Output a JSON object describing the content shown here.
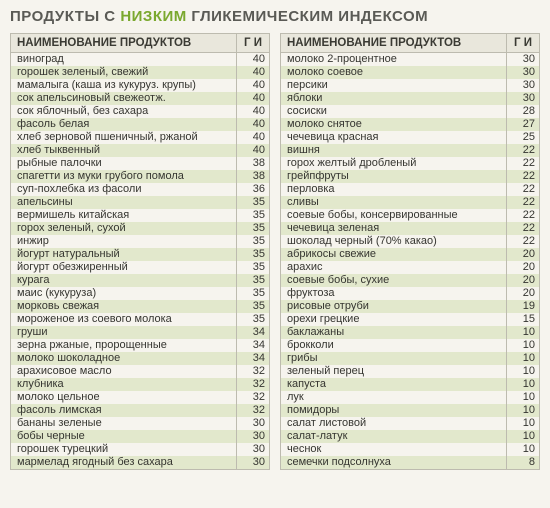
{
  "title_parts": {
    "pre": "ПРОДУКТЫ С ",
    "low": "НИЗКИМ",
    "post": " ГЛИКЕМИЧЕСКИМ ИНДЕКСОМ"
  },
  "headers": {
    "name": "НАИМЕНОВАНИЕ ПРОДУКТОВ",
    "gi": "Г И"
  },
  "left": [
    {
      "name": "виноград",
      "gi": 40
    },
    {
      "name": "горошек зеленый, свежий",
      "gi": 40
    },
    {
      "name": "мамалыга (каша из кукуруз. крупы)",
      "gi": 40
    },
    {
      "name": "сок апельсиновый свежеотж.",
      "gi": 40
    },
    {
      "name": "сок яблочный, без сахара",
      "gi": 40
    },
    {
      "name": "фасоль белая",
      "gi": 40
    },
    {
      "name": "хлеб зерновой пшеничный, ржаной",
      "gi": 40
    },
    {
      "name": "хлеб тыквенный",
      "gi": 40
    },
    {
      "name": "рыбные палочки",
      "gi": 38
    },
    {
      "name": "спагетти из муки грубого помола",
      "gi": 38
    },
    {
      "name": "суп-похлебка из фасоли",
      "gi": 36
    },
    {
      "name": "апельсины",
      "gi": 35
    },
    {
      "name": "вермишель китайская",
      "gi": 35
    },
    {
      "name": "горох зеленый, сухой",
      "gi": 35
    },
    {
      "name": "инжир",
      "gi": 35
    },
    {
      "name": "йогурт натуральный",
      "gi": 35
    },
    {
      "name": "йогурт обезжиренный",
      "gi": 35
    },
    {
      "name": "курага",
      "gi": 35
    },
    {
      "name": "маис (кукуруза)",
      "gi": 35
    },
    {
      "name": "морковь свежая",
      "gi": 35
    },
    {
      "name": "мороженое из соевого молока",
      "gi": 35
    },
    {
      "name": "груши",
      "gi": 34
    },
    {
      "name": "зерна ржаные, пророщенные",
      "gi": 34
    },
    {
      "name": "молоко шоколадное",
      "gi": 34
    },
    {
      "name": "арахисовое масло",
      "gi": 32
    },
    {
      "name": "клубника",
      "gi": 32
    },
    {
      "name": "молоко цельное",
      "gi": 32
    },
    {
      "name": "фасоль лимская",
      "gi": 32
    },
    {
      "name": "бананы зеленые",
      "gi": 30
    },
    {
      "name": "бобы черные",
      "gi": 30
    },
    {
      "name": "горошек турецкий",
      "gi": 30
    },
    {
      "name": "мармелад ягодный без сахара",
      "gi": 30
    }
  ],
  "right": [
    {
      "name": "молоко 2-процентное",
      "gi": 30
    },
    {
      "name": "молоко соевое",
      "gi": 30
    },
    {
      "name": "персики",
      "gi": 30
    },
    {
      "name": "яблоки",
      "gi": 30
    },
    {
      "name": "сосиски",
      "gi": 28
    },
    {
      "name": "молоко снятое",
      "gi": 27
    },
    {
      "name": "чечевица красная",
      "gi": 25
    },
    {
      "name": "вишня",
      "gi": 22
    },
    {
      "name": "горох желтый дробленый",
      "gi": 22
    },
    {
      "name": "грейпфруты",
      "gi": 22
    },
    {
      "name": "перловка",
      "gi": 22
    },
    {
      "name": "сливы",
      "gi": 22
    },
    {
      "name": "соевые бобы, консервированные",
      "gi": 22
    },
    {
      "name": "чечевица зеленая",
      "gi": 22
    },
    {
      "name": "шоколад черный (70% какао)",
      "gi": 22
    },
    {
      "name": "абрикосы свежие",
      "gi": 20
    },
    {
      "name": "арахис",
      "gi": 20
    },
    {
      "name": "соевые бобы, сухие",
      "gi": 20
    },
    {
      "name": "фруктоза",
      "gi": 20
    },
    {
      "name": "рисовые отруби",
      "gi": 19
    },
    {
      "name": "орехи грецкие",
      "gi": 15
    },
    {
      "name": "баклажаны",
      "gi": 10
    },
    {
      "name": "брокколи",
      "gi": 10
    },
    {
      "name": "грибы",
      "gi": 10
    },
    {
      "name": "зеленый перец",
      "gi": 10
    },
    {
      "name": "капуста",
      "gi": 10
    },
    {
      "name": "лук",
      "gi": 10
    },
    {
      "name": "помидоры",
      "gi": 10
    },
    {
      "name": "салат листовой",
      "gi": 10
    },
    {
      "name": "салат-латук",
      "gi": 10
    },
    {
      "name": "чеснок",
      "gi": 10
    },
    {
      "name": "семечки подсолнуха",
      "gi": 8
    }
  ]
}
